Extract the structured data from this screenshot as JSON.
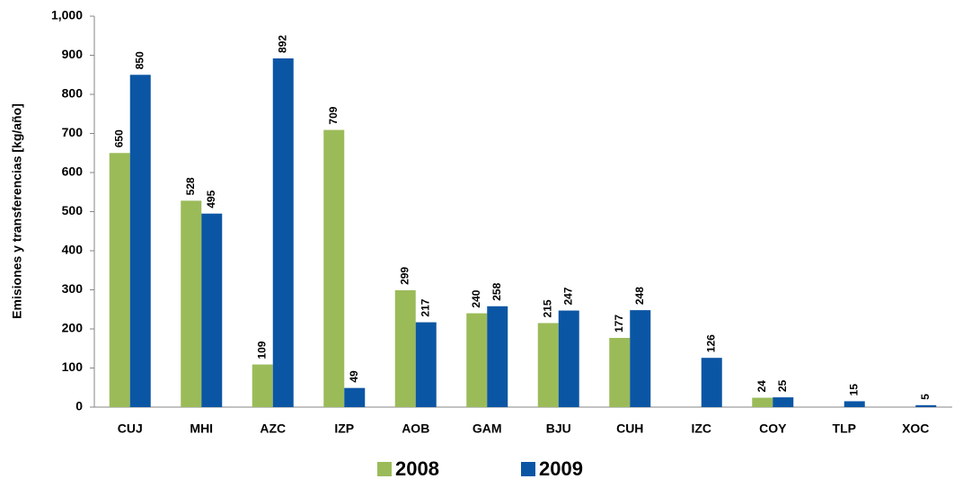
{
  "chart_data": {
    "type": "bar",
    "y_label": "Emisiones y transferencias [kg/año]",
    "categories": [
      "CUJ",
      "MHI",
      "AZC",
      "IZP",
      "AOB",
      "GAM",
      "BJU",
      "CUH",
      "IZC",
      "COY",
      "TLP",
      "XOC"
    ],
    "series": [
      {
        "name": "2008",
        "color": "#9bbb59",
        "values": [
          650,
          528,
          109,
          709,
          299,
          240,
          215,
          177,
          null,
          24,
          null,
          null
        ]
      },
      {
        "name": "2009",
        "color": "#0b56a4",
        "values": [
          850,
          495,
          892,
          49,
          217,
          258,
          247,
          248,
          126,
          25,
          15,
          5
        ]
      }
    ],
    "ylim": [
      0,
      1000
    ],
    "yticks": [
      0,
      100,
      200,
      300,
      400,
      500,
      600,
      700,
      800,
      900,
      {
        "value": 1000,
        "label": "1,000"
      }
    ],
    "grid": false,
    "legend": "bottom"
  }
}
